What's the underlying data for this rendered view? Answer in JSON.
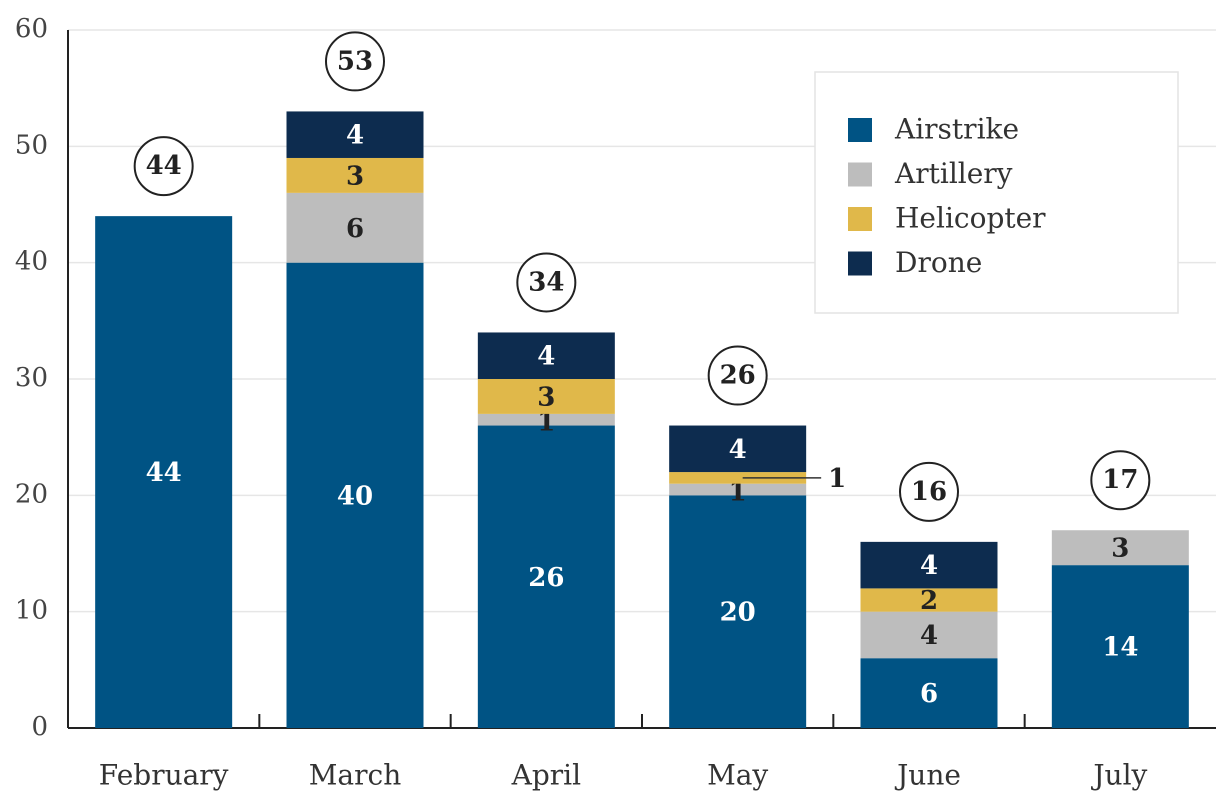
{
  "chart_data": {
    "type": "stacked_bar",
    "categories": [
      "February",
      "March",
      "April",
      "May",
      "June",
      "July"
    ],
    "series": [
      {
        "name": "Airstrike",
        "color": "#005384",
        "values": [
          44,
          40,
          26,
          20,
          6,
          14
        ]
      },
      {
        "name": "Artillery",
        "color": "#bdbdbd",
        "values": [
          0,
          6,
          1,
          1,
          4,
          3
        ]
      },
      {
        "name": "Helicopter",
        "color": "#e0b84a",
        "values": [
          0,
          3,
          3,
          1,
          2,
          0
        ]
      },
      {
        "name": "Drone",
        "color": "#0d2c4f",
        "values": [
          0,
          4,
          4,
          4,
          4,
          0
        ]
      }
    ],
    "totals": [
      44,
      53,
      34,
      26,
      16,
      17
    ],
    "ylim": [
      0,
      60
    ],
    "yticks": [
      0,
      10,
      20,
      30,
      40,
      50,
      60
    ],
    "grid": true,
    "legend": "upper right"
  }
}
